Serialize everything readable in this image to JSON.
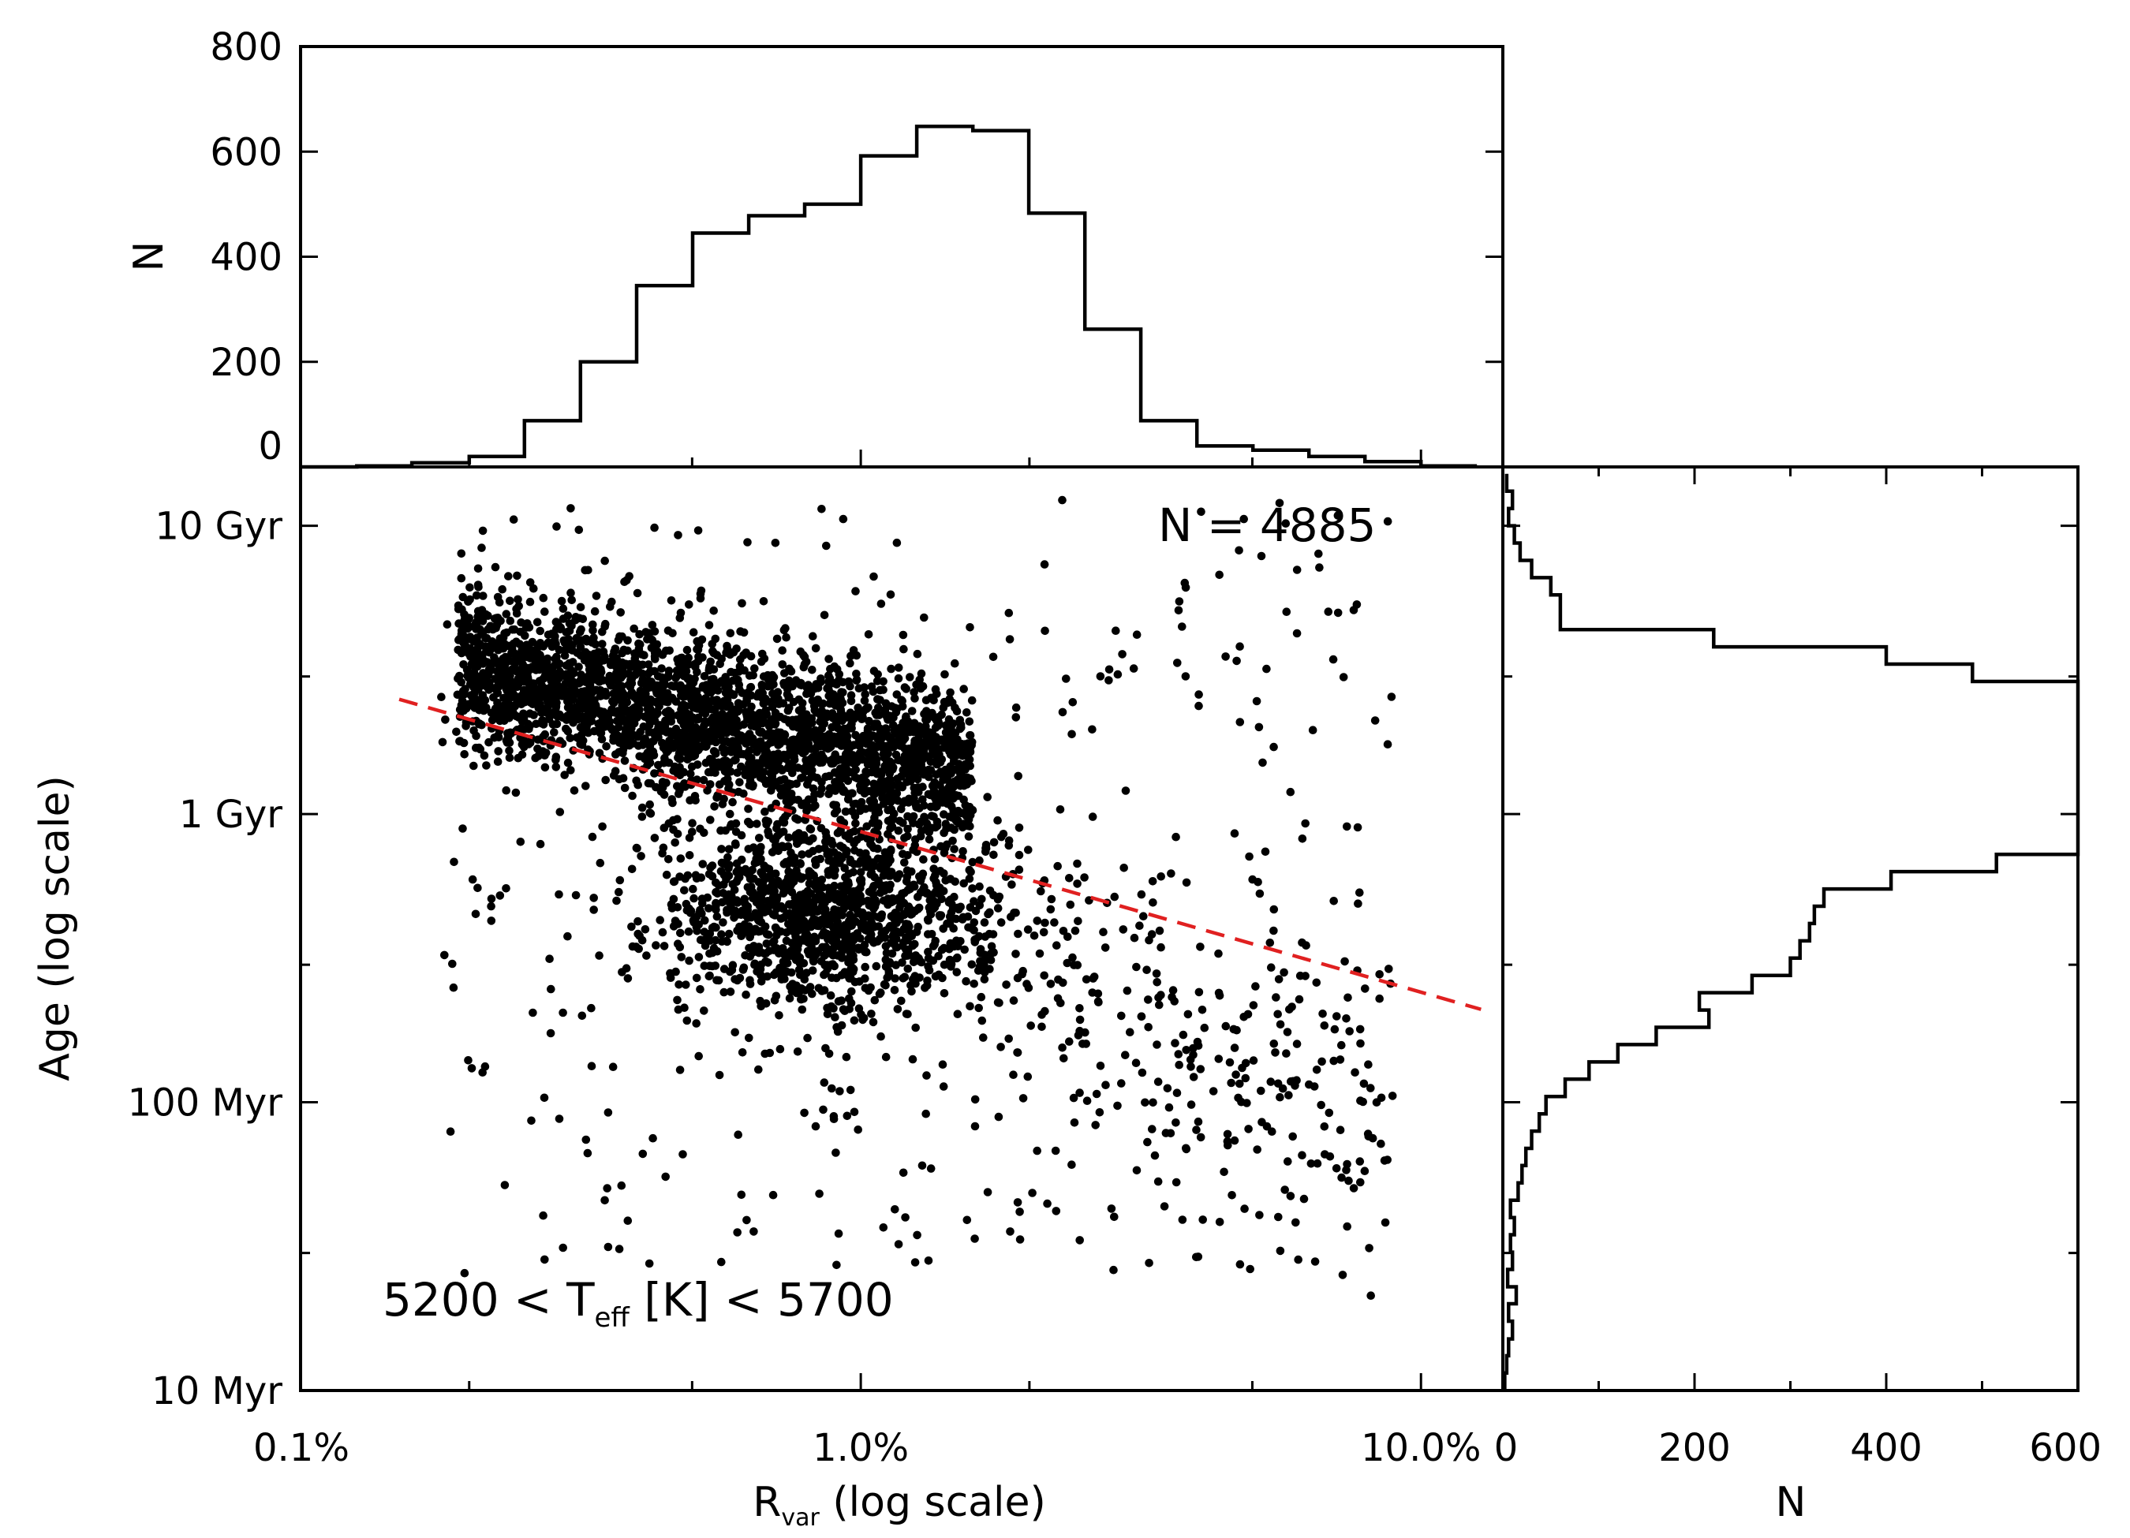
{
  "chart_data": [
    {
      "type": "scatter",
      "panel": "main",
      "xlabel_main": "R",
      "xlabel_sub": "var",
      "xlabel_rest": " (log scale)",
      "ylabel": "Age (log scale)",
      "x_scale": "log",
      "y_scale": "log",
      "xlim": [
        0.1,
        14.0
      ],
      "ylim": [
        0.01,
        16.0
      ],
      "x_ticks": [
        {
          "value": 0.1,
          "label": "0.1%"
        },
        {
          "value": 1.0,
          "label": "1.0%"
        },
        {
          "value": 10.0,
          "label": "10.0%"
        }
      ],
      "y_ticks": [
        {
          "value": 0.01,
          "label": "10 Myr"
        },
        {
          "value": 0.1,
          "label": "100 Myr"
        },
        {
          "value": 1,
          "label": "1 Gyr"
        },
        {
          "value": 10,
          "label": "10 Gyr"
        }
      ],
      "annotation_count": "N = 4885",
      "annotation_teff": {
        "pre": "5200 < T",
        "sub": "eff",
        "post": " [K] < 5700"
      },
      "fit_line": {
        "style": "dashed",
        "color": "#e02020",
        "x": [
          0.15,
          12.8
        ],
        "y": [
          2.5,
          0.21
        ]
      },
      "point_color": "#000000"
    },
    {
      "type": "histogram",
      "panel": "top",
      "ylabel": "N",
      "ylim": [
        0,
        800
      ],
      "y_ticks": [
        0,
        200,
        400,
        600,
        800
      ],
      "bin_edges": [
        0.1,
        0.126,
        0.158,
        0.2,
        0.251,
        0.316,
        0.398,
        0.501,
        0.631,
        0.794,
        1.0,
        1.259,
        1.585,
        1.995,
        2.512,
        3.162,
        3.981,
        5.012,
        6.31,
        7.943,
        10.0,
        12.589
      ],
      "counts": [
        0,
        2,
        8,
        20,
        88,
        200,
        345,
        445,
        478,
        500,
        592,
        648,
        640,
        483,
        262,
        88,
        40,
        32,
        20,
        10,
        2
      ]
    },
    {
      "type": "histogram",
      "panel": "right",
      "orientation": "horizontal",
      "xlabel": "N",
      "xlim": [
        0,
        600
      ],
      "x_ticks": [
        0,
        200,
        400,
        600
      ],
      "bin_edges": [
        0.01,
        0.0115,
        0.0132,
        0.0151,
        0.0174,
        0.02,
        0.0229,
        0.0263,
        0.0302,
        0.0347,
        0.0398,
        0.0457,
        0.0525,
        0.0603,
        0.0692,
        0.0794,
        0.0912,
        0.1047,
        0.1202,
        0.138,
        0.1585,
        0.182,
        0.2089,
        0.2399,
        0.2754,
        0.3162,
        0.3631,
        0.4169,
        0.4786,
        0.5495,
        0.631,
        0.7244,
        0.8318,
        0.955,
        1.0965,
        1.2589,
        1.4454,
        1.6596,
        1.9055,
        2.1878,
        2.5119,
        2.884,
        3.3113,
        3.8019,
        4.3652,
        5.0119,
        5.7544,
        6.6069,
        7.5858,
        8.7096,
        10.0,
        11.4815,
        13.1826,
        15.1356
      ],
      "counts": [
        2,
        4,
        6,
        10,
        6,
        14,
        5,
        10,
        8,
        12,
        8,
        16,
        20,
        24,
        30,
        38,
        45,
        65,
        90,
        120,
        160,
        215,
        205,
        260,
        300,
        310,
        320,
        325,
        335,
        405,
        515,
        600,
        600,
        600,
        600,
        600,
        600,
        600,
        600,
        600,
        600,
        490,
        400,
        220,
        60,
        60,
        50,
        30,
        18,
        12,
        6,
        10,
        4
      ]
    }
  ]
}
